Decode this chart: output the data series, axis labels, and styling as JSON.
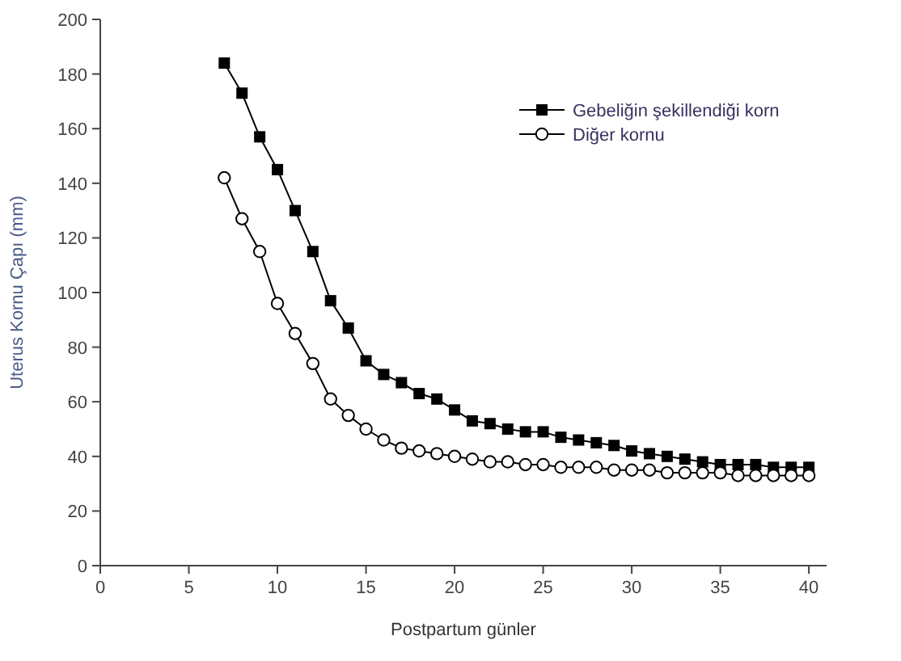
{
  "chart_data": {
    "type": "line",
    "xlabel": "Postpartum günler",
    "ylabel": "Uterus Kornu Çapı (mm)",
    "x": [
      7,
      8,
      9,
      10,
      11,
      12,
      13,
      14,
      15,
      16,
      17,
      18,
      19,
      20,
      21,
      22,
      23,
      24,
      25,
      26,
      27,
      28,
      29,
      30,
      31,
      32,
      33,
      34,
      35,
      36,
      37,
      38,
      39,
      40
    ],
    "xlim": [
      0,
      41
    ],
    "xticks": [
      0,
      5,
      10,
      15,
      20,
      25,
      30,
      35,
      40
    ],
    "ylim": [
      0,
      200
    ],
    "yticks": [
      0,
      20,
      40,
      60,
      80,
      100,
      120,
      140,
      160,
      180,
      200
    ],
    "grid": false,
    "legend": "top right",
    "line_style": "solid",
    "series": [
      {
        "name": "Gebeliğin şekillendiği korn",
        "color": "#000000",
        "marker": "square",
        "values": [
          184,
          173,
          157,
          145,
          130,
          115,
          97,
          87,
          75,
          70,
          67,
          63,
          61,
          57,
          53,
          52,
          50,
          49,
          49,
          47,
          46,
          45,
          44,
          42,
          41,
          40,
          39,
          38,
          37,
          37,
          37,
          36,
          36,
          36
        ]
      },
      {
        "name": "Diğer kornu",
        "color": "#000000",
        "marker": "circle",
        "values": [
          142,
          127,
          115,
          96,
          85,
          74,
          61,
          55,
          50,
          46,
          43,
          42,
          41,
          40,
          39,
          38,
          38,
          37,
          37,
          36,
          36,
          36,
          35,
          35,
          35,
          34,
          34,
          34,
          34,
          33,
          33,
          33,
          33,
          33
        ]
      }
    ]
  }
}
